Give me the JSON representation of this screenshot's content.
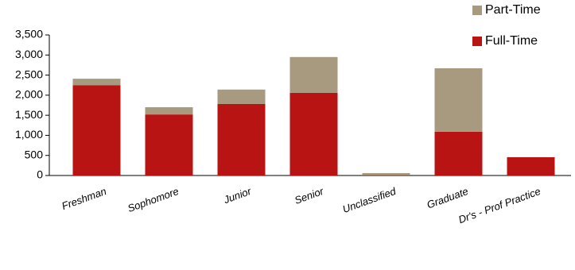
{
  "chart_data": {
    "type": "stacked_bar",
    "categories": [
      "Freshman",
      "Sophomore",
      "Junior",
      "Senior",
      "Unclassified",
      "Graduate",
      "Dr's - Prof Practice"
    ],
    "series": [
      {
        "name": "Full-Time",
        "color": "#b81414",
        "values": [
          2250,
          1520,
          1780,
          2060,
          5,
          1090,
          455
        ]
      },
      {
        "name": "Part-Time",
        "color": "#a89a7e",
        "values": [
          160,
          180,
          360,
          890,
          55,
          1580,
          0
        ]
      }
    ],
    "ylim": [
      0,
      3500
    ],
    "yticks": [
      {
        "value": 0,
        "label": "0"
      },
      {
        "value": 500,
        "label": "500"
      },
      {
        "value": 1000,
        "label": "1,000"
      },
      {
        "value": 1500,
        "label": "1,500"
      },
      {
        "value": 2000,
        "label": "2,000"
      },
      {
        "value": 2500,
        "label": "2,500"
      },
      {
        "value": 3000,
        "label": "3,000"
      },
      {
        "value": 3500,
        "label": "3,500"
      }
    ],
    "legend": "top-right"
  }
}
